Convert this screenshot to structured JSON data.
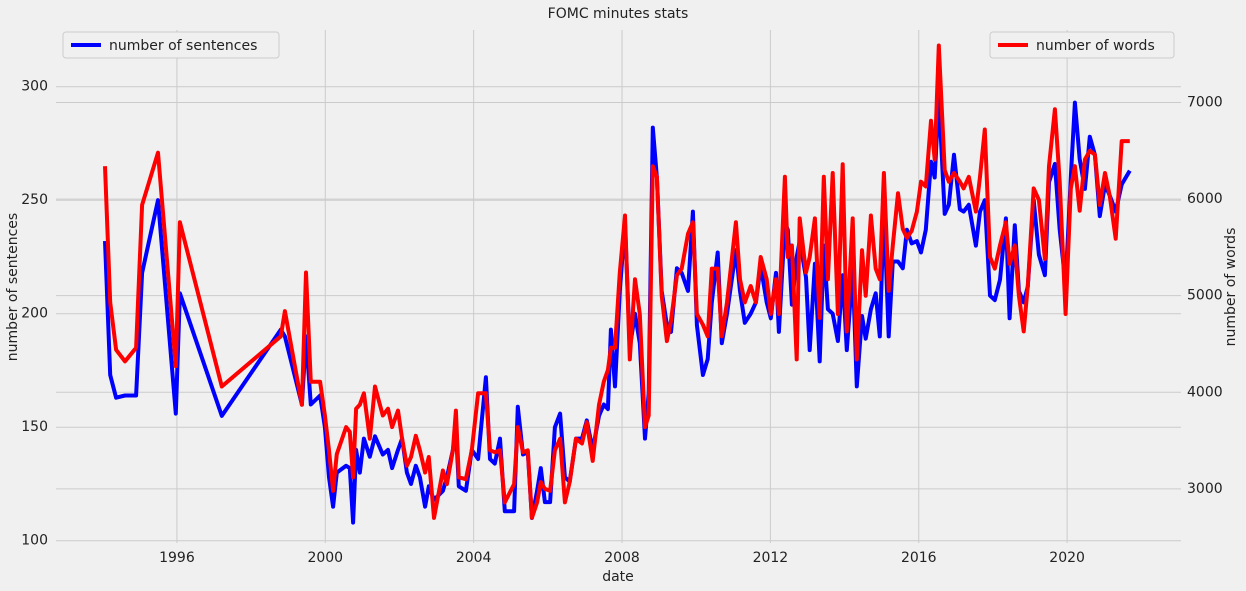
{
  "chart_data": {
    "type": "line",
    "title": "FOMC minutes stats",
    "xlabel": "date",
    "ylabel": "number of sentences",
    "y2label": "number of words",
    "x": [
      1994.06,
      1994.2,
      1994.36,
      1994.6,
      1994.9,
      1995.06,
      1995.49,
      1995.97,
      1996.08,
      1997.21,
      1998.8,
      1998.91,
      1999.37,
      1999.48,
      1999.61,
      1999.86,
      1999.99,
      2000.1,
      2000.21,
      2000.31,
      2000.56,
      2000.66,
      2000.75,
      2000.83,
      2000.93,
      2001.04,
      2001.2,
      2001.34,
      2001.55,
      2001.69,
      2001.8,
      2001.96,
      2002.07,
      2002.2,
      2002.31,
      2002.44,
      2002.55,
      2002.69,
      2002.79,
      2002.93,
      2003.17,
      2003.28,
      2003.44,
      2003.52,
      2003.6,
      2003.79,
      2003.95,
      2004.12,
      2004.33,
      2004.44,
      2004.57,
      2004.71,
      2004.84,
      2005.09,
      2005.19,
      2005.33,
      2005.46,
      2005.57,
      2005.71,
      2005.81,
      2005.92,
      2006.06,
      2006.19,
      2006.33,
      2006.46,
      2006.59,
      2006.76,
      2006.92,
      2007.05,
      2007.21,
      2007.38,
      2007.51,
      2007.62,
      2007.7,
      2007.81,
      2007.94,
      2008.08,
      2008.21,
      2008.35,
      2008.48,
      2008.62,
      2008.72,
      2008.83,
      2008.94,
      2009.07,
      2009.21,
      2009.32,
      2009.48,
      2009.61,
      2009.78,
      2009.91,
      2010.02,
      2010.18,
      2010.31,
      2010.42,
      2010.58,
      2010.69,
      2010.83,
      2011.07,
      2011.18,
      2011.31,
      2011.47,
      2011.61,
      2011.74,
      2011.9,
      2012.01,
      2012.15,
      2012.23,
      2012.39,
      2012.47,
      2012.58,
      2012.71,
      2012.79,
      2012.96,
      2013.06,
      2013.2,
      2013.33,
      2013.44,
      2013.55,
      2013.68,
      2013.82,
      2013.95,
      2014.06,
      2014.22,
      2014.33,
      2014.47,
      2014.57,
      2014.71,
      2014.84,
      2014.95,
      2015.06,
      2015.19,
      2015.3,
      2015.44,
      2015.57,
      2015.68,
      2015.81,
      2015.95,
      2016.06,
      2016.19,
      2016.33,
      2016.43,
      2016.54,
      2016.7,
      2016.81,
      2016.95,
      2017.11,
      2017.21,
      2017.35,
      2017.54,
      2017.65,
      2017.78,
      2017.92,
      2018.05,
      2018.19,
      2018.35,
      2018.45,
      2018.59,
      2018.7,
      2018.83,
      2018.94,
      2019.1,
      2019.24,
      2019.4,
      2019.51,
      2019.67,
      2019.8,
      2019.96,
      2020.1,
      2020.21,
      2020.34,
      2020.48,
      2020.61,
      2020.75,
      2020.88,
      2021.02,
      2021.15,
      2021.31,
      2021.47,
      2021.69
    ],
    "series": [
      {
        "name": "number of sentences",
        "color": "#0000ff",
        "axis": "y",
        "legend": "upper left",
        "values": [
          232,
          173,
          163,
          164,
          164,
          218,
          250,
          156,
          209,
          155,
          193,
          190,
          160,
          190,
          160,
          164,
          150,
          128,
          115,
          130,
          133,
          132,
          108,
          140,
          130,
          145,
          137,
          146,
          138,
          140,
          132,
          140,
          145,
          130,
          125,
          133,
          128,
          115,
          124,
          118,
          122,
          128,
          140,
          150,
          124,
          122,
          140,
          136,
          172,
          136,
          134,
          145,
          113,
          113,
          159,
          138,
          139,
          110,
          122,
          132,
          117,
          117,
          150,
          156,
          128,
          126,
          145,
          145,
          153,
          140,
          155,
          160,
          158,
          193,
          168,
          210,
          240,
          185,
          200,
          187,
          145,
          165,
          282,
          260,
          210,
          195,
          192,
          220,
          218,
          210,
          245,
          195,
          173,
          180,
          205,
          227,
          187,
          200,
          228,
          210,
          196,
          200,
          205,
          221,
          205,
          198,
          218,
          192,
          240,
          237,
          204,
          225,
          232,
          216,
          184,
          222,
          179,
          230,
          202,
          200,
          188,
          217,
          184,
          220,
          168,
          199,
          189,
          202,
          209,
          190,
          247,
          190,
          223,
          223,
          220,
          237,
          231,
          232,
          227,
          237,
          267,
          260,
          296,
          244,
          248,
          270,
          246,
          245,
          248,
          230,
          245,
          250,
          208,
          206,
          215,
          242,
          198,
          239,
          210,
          205,
          212,
          250,
          226,
          217,
          258,
          266,
          237,
          213,
          260,
          293,
          268,
          255,
          278,
          270,
          243,
          257,
          252,
          245,
          257,
          263
        ]
      },
      {
        "name": "number of words",
        "color": "#ff0000",
        "axis": "y2",
        "legend": "upper right",
        "values": [
          6340,
          4930,
          4440,
          4320,
          4460,
          5940,
          6480,
          4270,
          5760,
          4060,
          4580,
          4840,
          3870,
          5240,
          4110,
          4110,
          3760,
          3400,
          2980,
          3360,
          3640,
          3590,
          3120,
          3830,
          3870,
          3990,
          3520,
          4060,
          3760,
          3830,
          3640,
          3810,
          3520,
          3240,
          3330,
          3550,
          3400,
          3170,
          3330,
          2700,
          3190,
          3050,
          3400,
          3810,
          3120,
          3100,
          3400,
          3990,
          3990,
          3400,
          3380,
          3400,
          2860,
          3050,
          3640,
          3380,
          3400,
          2700,
          2860,
          3070,
          3000,
          2980,
          3400,
          3520,
          2860,
          3070,
          3520,
          3470,
          3690,
          3290,
          3870,
          4110,
          4230,
          4460,
          4460,
          5240,
          5830,
          4340,
          5170,
          4810,
          3640,
          3760,
          6340,
          6230,
          5000,
          4530,
          4740,
          5210,
          5280,
          5640,
          5760,
          4810,
          4700,
          4580,
          5280,
          5280,
          4580,
          4930,
          5760,
          5170,
          4930,
          5100,
          4930,
          5400,
          5170,
          4810,
          5170,
          4810,
          6230,
          5400,
          5520,
          4340,
          5800,
          5240,
          5400,
          5800,
          4770,
          6230,
          5170,
          6270,
          4810,
          6360,
          4630,
          5800,
          4340,
          5470,
          5000,
          5830,
          5280,
          5170,
          6270,
          5050,
          5520,
          6060,
          5690,
          5600,
          5670,
          5870,
          6180,
          6130,
          6810,
          6410,
          7590,
          6300,
          6180,
          6270,
          6180,
          6110,
          6230,
          5870,
          6230,
          6720,
          5400,
          5280,
          5520,
          5760,
          5330,
          5520,
          5000,
          4630,
          5100,
          6110,
          5990,
          5380,
          6340,
          6930,
          6180,
          4810,
          6110,
          6340,
          5880,
          6410,
          6500,
          6460,
          5940,
          6270,
          6030,
          5590,
          6600,
          6600
        ]
      }
    ],
    "xlim": [
      1992.74,
      2023.07
    ],
    "xticks": [
      1996,
      2000,
      2004,
      2008,
      2012,
      2016,
      2020
    ],
    "ylim": [
      99,
      325
    ],
    "yticks": [
      100,
      150,
      200,
      250,
      300
    ],
    "y2lim": [
      2440,
      7750
    ],
    "y2ticks": [
      3000,
      4000,
      5000,
      6000,
      7000
    ],
    "grid": true
  }
}
